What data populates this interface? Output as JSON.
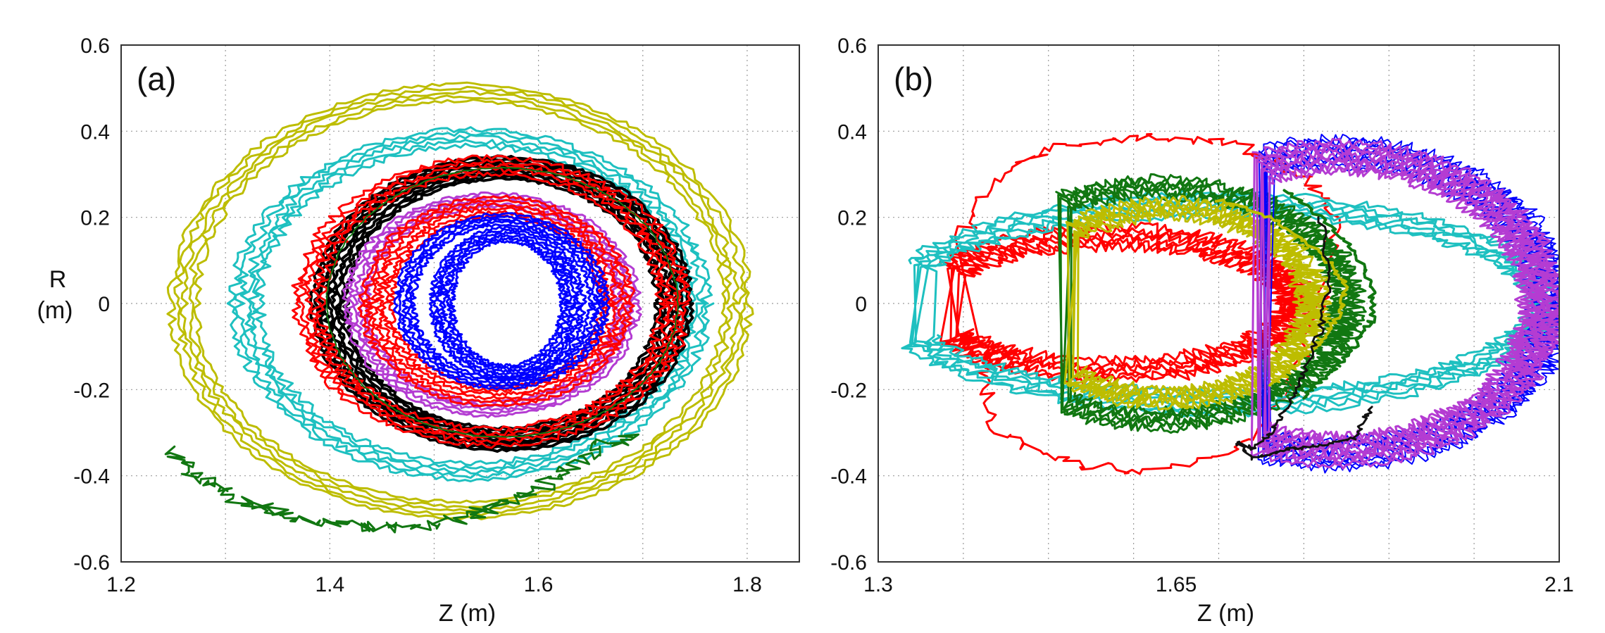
{
  "chart_data": [
    {
      "type": "line",
      "panel_label": "(a)",
      "xlabel": "Z (m)",
      "ylabel_line1": "R",
      "ylabel_line2": "(m)",
      "xlim": [
        1.2,
        1.85
      ],
      "ylim": [
        -0.6,
        0.6
      ],
      "xticks": [
        1.2,
        1.4,
        1.6,
        1.8
      ],
      "xtick_labels": [
        "1.2",
        "1.4",
        "1.6",
        "1.8"
      ],
      "yticks": [
        0.6,
        0.4,
        0.2,
        0,
        -0.2,
        -0.4,
        -0.6
      ],
      "ytick_labels": [
        "0.6",
        "0.4",
        "0.2",
        "0",
        "-0.2",
        "-0.4",
        "-0.6"
      ],
      "xgrid": [
        1.3,
        1.4,
        1.5,
        1.6,
        1.7,
        1.8
      ],
      "ygrid": [
        0.4,
        0.2,
        0,
        -0.2,
        -0.4
      ],
      "series": [
        {
          "name": "yellow orbit",
          "color": "#bdbd00",
          "shape": "orbit",
          "cx": 1.525,
          "cy": 0.0,
          "rx": 0.265,
          "ry_top": 0.49,
          "ry_bot": 0.48,
          "band": 0.012,
          "loops": 5,
          "noise": 0.004,
          "width": 3
        },
        {
          "name": "cyan orbit",
          "color": "#1ec0c0",
          "shape": "orbit",
          "cx": 1.535,
          "cy": 0.0,
          "rx": 0.215,
          "ry_top": 0.385,
          "ry_bot": 0.39,
          "band": 0.012,
          "loops": 5,
          "noise": 0.006,
          "width": 3
        },
        {
          "name": "black orbit",
          "color": "#000000",
          "shape": "orbit",
          "cx": 1.565,
          "cy": 0.0,
          "rx": 0.165,
          "ry_top": 0.315,
          "ry_bot": 0.315,
          "band": 0.016,
          "loops": 9,
          "noise": 0.003,
          "width": 4
        },
        {
          "name": "red orbit outer",
          "color": "#ff0000",
          "shape": "orbit",
          "cx": 1.555,
          "cy": 0.0,
          "rx": 0.175,
          "ry_top": 0.32,
          "ry_bot": 0.31,
          "band": 0.012,
          "loops": 5,
          "noise": 0.006,
          "width": 3
        },
        {
          "name": "magenta orbit",
          "color": "#b43cd2",
          "shape": "orbit",
          "cx": 1.555,
          "cy": 0.0,
          "rx": 0.13,
          "ry_top": 0.24,
          "ry_bot": 0.245,
          "band": 0.01,
          "loops": 5,
          "noise": 0.004,
          "width": 3
        },
        {
          "name": "red orbit inner",
          "color": "#ff0000",
          "shape": "orbit",
          "cx": 1.56,
          "cy": 0.0,
          "rx": 0.115,
          "ry_top": 0.225,
          "ry_bot": 0.215,
          "band": 0.014,
          "loops": 6,
          "noise": 0.004,
          "width": 3
        },
        {
          "name": "blue orbit outer",
          "color": "#0000ff",
          "shape": "orbit",
          "cx": 1.565,
          "cy": 0.0,
          "rx": 0.093,
          "ry_top": 0.195,
          "ry_bot": 0.185,
          "band": 0.008,
          "loops": 5,
          "noise": 0.003,
          "width": 3
        },
        {
          "name": "blue orbit inner",
          "color": "#0000ff",
          "shape": "orbit",
          "cx": 1.57,
          "cy": 0.0,
          "rx": 0.063,
          "ry_top": 0.16,
          "ry_bot": 0.16,
          "band": 0.01,
          "loops": 6,
          "noise": 0.003,
          "width": 3
        },
        {
          "name": "green orbit",
          "color": "#117711",
          "shape": "orbit",
          "cx": 1.565,
          "cy": 0.0,
          "rx": 0.168,
          "ry_top": 0.315,
          "ry_bot": 0.31,
          "band": 0.0,
          "loops": 1,
          "noise": 0.001,
          "width": 2
        },
        {
          "name": "green escaping trace",
          "color": "#117711",
          "shape": "polyline",
          "width": 3,
          "noise": 0.012,
          "x": [
            1.245,
            1.27,
            1.3,
            1.33,
            1.36,
            1.4,
            1.44,
            1.48,
            1.52,
            1.56,
            1.6,
            1.63,
            1.66,
            1.69
          ],
          "y": [
            -0.34,
            -0.4,
            -0.44,
            -0.47,
            -0.49,
            -0.51,
            -0.52,
            -0.52,
            -0.5,
            -0.47,
            -0.43,
            -0.38,
            -0.33,
            -0.31
          ]
        }
      ]
    },
    {
      "type": "line",
      "panel_label": "(b)",
      "xlabel": "Z (m)",
      "xlim": [
        1.3,
        2.1
      ],
      "ylim": [
        -0.6,
        0.6
      ],
      "xticks": [
        1.3,
        1.65,
        2.1
      ],
      "xtick_labels": [
        "1.3",
        "1.65",
        "2.1"
      ],
      "yticks": [
        0.6,
        0.4,
        0.2,
        0,
        -0.2,
        -0.4,
        -0.6
      ],
      "ytick_labels": [
        "0.6",
        "0.4",
        "0.2",
        "0",
        "-0.2",
        "-0.4",
        "-0.6"
      ],
      "xgrid": [
        1.4,
        1.5,
        1.6,
        1.7,
        1.8,
        1.9,
        2.0
      ],
      "ygrid": [
        0.4,
        0.2,
        0,
        -0.2,
        -0.4
      ],
      "series": [
        {
          "name": "red outer orbit",
          "color": "#ff0000",
          "shape": "polyline",
          "width": 3,
          "noise": 0.01,
          "closed": true,
          "x": [
            1.4,
            1.44,
            1.52,
            1.62,
            1.72,
            1.8,
            1.84,
            1.82,
            1.78,
            1.72,
            1.62,
            1.52,
            1.44,
            1.42,
            1.46,
            1.42
          ],
          "y": [
            0.16,
            0.3,
            0.37,
            0.39,
            0.37,
            0.3,
            0.2,
            0.0,
            -0.2,
            -0.34,
            -0.39,
            -0.37,
            -0.3,
            -0.15,
            -0.12,
            -0.1
          ]
        },
        {
          "name": "red inner arc",
          "color": "#ff0000",
          "shape": "arc",
          "cx": 1.575,
          "cy": 0.0,
          "rx": 0.215,
          "ry": 0.155,
          "band": 0.015,
          "loops": 6,
          "noise": 0.012,
          "width": 3,
          "from_deg": -150,
          "to_deg": 150
        },
        {
          "name": "cyan arc",
          "color": "#1ec0c0",
          "shape": "arc",
          "cx": 1.7,
          "cy": 0.0,
          "rx": 0.38,
          "ry": 0.23,
          "band": 0.015,
          "loops": 6,
          "noise": 0.01,
          "width": 3,
          "from_deg": -158,
          "to_deg": 158
        },
        {
          "name": "green arc",
          "color": "#117711",
          "shape": "arc",
          "cx": 1.63,
          "cy": 0.0,
          "rx": 0.22,
          "ry": 0.27,
          "band": 0.012,
          "loops": 6,
          "noise": 0.012,
          "width": 3,
          "from_deg": -120,
          "to_deg": 120
        },
        {
          "name": "yellow arc",
          "color": "#bdbd00",
          "shape": "arc",
          "cx": 1.64,
          "cy": 0.0,
          "rx": 0.17,
          "ry": 0.22,
          "band": 0.012,
          "loops": 6,
          "noise": 0.012,
          "width": 3,
          "from_deg": -130,
          "to_deg": 130
        },
        {
          "name": "blue arc",
          "color": "#0000ff",
          "shape": "arc",
          "cx": 1.84,
          "cy": 0.0,
          "rx": 0.25,
          "ry": 0.35,
          "band": 0.02,
          "loops": 9,
          "noise": 0.012,
          "width": 2,
          "from_deg": -110,
          "to_deg": 110
        },
        {
          "name": "magenta arc",
          "color": "#b43cd2",
          "shape": "arc",
          "cx": 1.84,
          "cy": 0.0,
          "rx": 0.24,
          "ry": 0.34,
          "band": 0.02,
          "loops": 9,
          "noise": 0.012,
          "width": 3,
          "from_deg": -112,
          "to_deg": 112
        },
        {
          "name": "green trace",
          "color": "#117711",
          "shape": "polyline",
          "width": 4,
          "noise": 0.004,
          "x": [
            1.78,
            1.82,
            1.86,
            1.88,
            1.88,
            1.86,
            1.84,
            1.82,
            1.8
          ],
          "y": [
            0.26,
            0.2,
            0.12,
            0.04,
            -0.04,
            -0.1,
            -0.14,
            -0.18,
            -0.22
          ]
        },
        {
          "name": "yellow trace",
          "color": "#bdbd00",
          "shape": "polyline",
          "width": 4,
          "noise": 0.004,
          "x": [
            1.7,
            1.76,
            1.82,
            1.85,
            1.84,
            1.82,
            1.79,
            1.76
          ],
          "y": [
            0.24,
            0.2,
            0.12,
            0.04,
            -0.03,
            -0.09,
            -0.14,
            -0.19
          ]
        },
        {
          "name": "black trace",
          "color": "#111111",
          "shape": "polyline",
          "width": 3,
          "noise": 0.004,
          "x": [
            1.82,
            1.83,
            1.82,
            1.8,
            1.78,
            1.76,
            1.74,
            1.72,
            1.74,
            1.78,
            1.82,
            1.86,
            1.88
          ],
          "y": [
            0.2,
            0.06,
            -0.06,
            -0.16,
            -0.24,
            -0.3,
            -0.34,
            -0.32,
            -0.36,
            -0.34,
            -0.33,
            -0.31,
            -0.24
          ]
        }
      ]
    }
  ]
}
